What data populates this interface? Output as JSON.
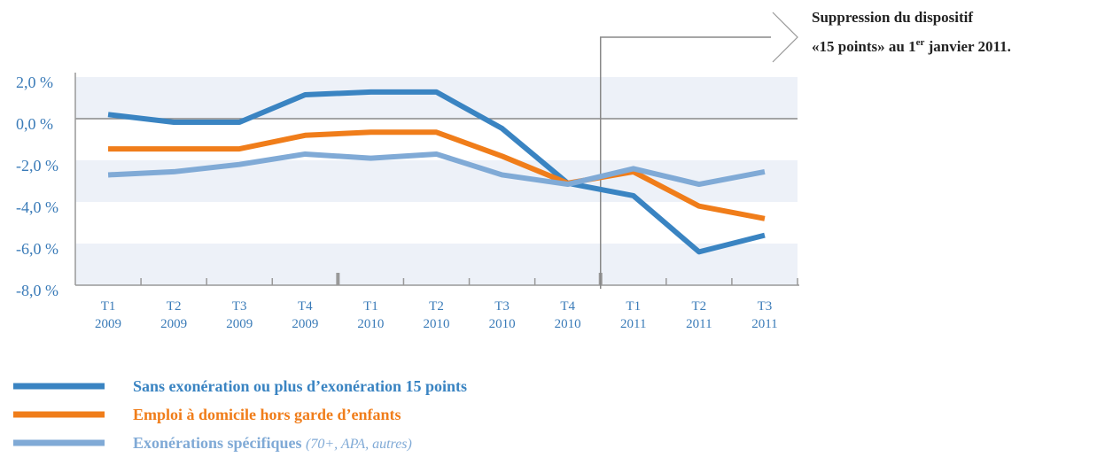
{
  "chart_data": {
    "type": "line",
    "categories": [
      [
        "T1",
        "2009"
      ],
      [
        "T2",
        "2009"
      ],
      [
        "T3",
        "2009"
      ],
      [
        "T4",
        "2009"
      ],
      [
        "T1",
        "2010"
      ],
      [
        "T2",
        "2010"
      ],
      [
        "T3",
        "2010"
      ],
      [
        "T4",
        "2010"
      ],
      [
        "T1",
        "2011"
      ],
      [
        "T2",
        "2011"
      ],
      [
        "T3",
        "2011"
      ]
    ],
    "ylim": [
      -8,
      2
    ],
    "yticks": [
      {
        "value": 2,
        "label": "2,0 %"
      },
      {
        "value": 0,
        "label": "0,0 %"
      },
      {
        "value": -2,
        "label": "-2,0 %"
      },
      {
        "value": -4,
        "label": "-4,0 %"
      },
      {
        "value": -6,
        "label": "-6,0 %"
      },
      {
        "value": -8,
        "label": "-8,0 %"
      }
    ],
    "grid": true,
    "series": [
      {
        "name": "Sans exonération ou plus d’exonération 15 points",
        "color": "#3a84c2",
        "values": [
          0.2,
          -0.17,
          -0.17,
          1.15,
          1.28,
          1.28,
          -0.47,
          -3.1,
          -3.7,
          -6.4,
          -5.6
        ]
      },
      {
        "name": "Emploi à domicile hors garde d’enfants",
        "color": "#f07d1a",
        "values": [
          -1.45,
          -1.45,
          -1.45,
          -0.8,
          -0.65,
          -0.65,
          -1.8,
          -3.1,
          -2.55,
          -4.2,
          -4.8
        ]
      },
      {
        "name": "Exonérations spécifiques",
        "note": "(70+, APA, autres)",
        "color": "#80aad6",
        "values": [
          -2.7,
          -2.55,
          -2.2,
          -1.7,
          -1.9,
          -1.7,
          -2.7,
          -3.15,
          -2.4,
          -3.15,
          -2.55
        ]
      }
    ],
    "annotation": {
      "line1": "Suppression du dispositif",
      "line2_a": "«15 points» au 1",
      "line2_sup": "er",
      "line2_b": " janvier 2011."
    }
  }
}
